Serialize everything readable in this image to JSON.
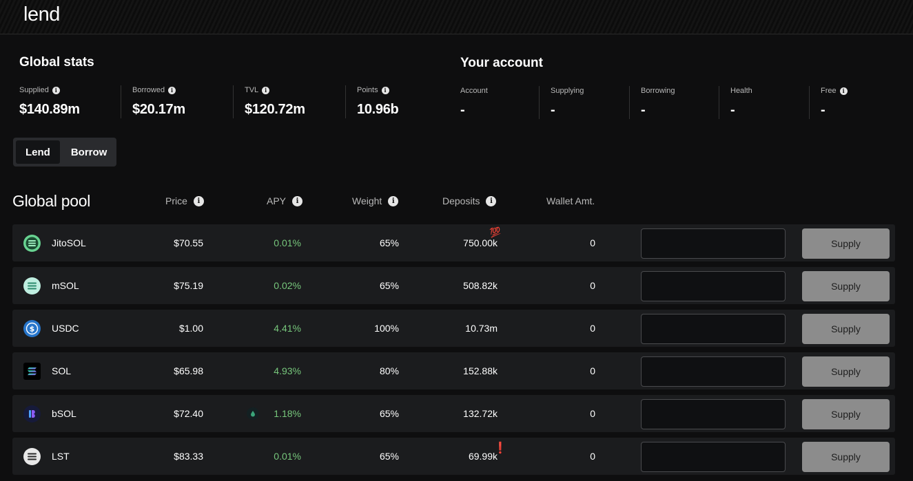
{
  "header": {
    "logo": "lend"
  },
  "global_stats": {
    "title": "Global stats",
    "items": [
      {
        "label": "Supplied",
        "value": "$140.89m"
      },
      {
        "label": "Borrowed",
        "value": "$20.17m"
      },
      {
        "label": "TVL",
        "value": "$120.72m"
      },
      {
        "label": "Points",
        "value": "10.96b"
      }
    ]
  },
  "account": {
    "title": "Your account",
    "items": [
      {
        "label": "Account",
        "value": "-"
      },
      {
        "label": "Supplying",
        "value": "-"
      },
      {
        "label": "Borrowing",
        "value": "-"
      },
      {
        "label": "Health",
        "value": "-"
      },
      {
        "label": "Free",
        "value": "-"
      }
    ]
  },
  "toggle": {
    "lend": "Lend",
    "borrow": "Borrow",
    "active": "Lend"
  },
  "pool": {
    "title": "Global pool",
    "columns": {
      "price": "Price",
      "apy": "APY",
      "weight": "Weight",
      "deposits": "Deposits",
      "wallet": "Wallet Amt."
    },
    "rows": [
      {
        "token": "JitoSOL",
        "icon": "jitosol-icon",
        "price": "$70.55",
        "apy": "0.01%",
        "weight": "65%",
        "deposits": "750.00k",
        "badge": "💯",
        "wallet": "0",
        "input": "",
        "action": "Supply"
      },
      {
        "token": "mSOL",
        "icon": "msol-icon",
        "price": "$75.19",
        "apy": "0.02%",
        "weight": "65%",
        "deposits": "508.82k",
        "wallet": "0",
        "input": "",
        "action": "Supply"
      },
      {
        "token": "USDC",
        "icon": "usdc-icon",
        "price": "$1.00",
        "apy": "4.41%",
        "weight": "100%",
        "deposits": "10.73m",
        "wallet": "0",
        "input": "",
        "action": "Supply"
      },
      {
        "token": "SOL",
        "icon": "sol-icon",
        "price": "$65.98",
        "apy": "4.93%",
        "weight": "80%",
        "deposits": "152.88k",
        "wallet": "0",
        "input": "",
        "action": "Supply"
      },
      {
        "token": "bSOL",
        "icon": "bsol-icon",
        "price": "$72.40",
        "apy": "1.18%",
        "weight": "65%",
        "deposits": "132.72k",
        "wallet": "0",
        "input": "",
        "action": "Supply"
      },
      {
        "token": "LST",
        "icon": "lst-icon",
        "price": "$83.33",
        "apy": "0.01%",
        "weight": "65%",
        "deposits": "69.99k",
        "badge": "❗",
        "wallet": "0",
        "input": "",
        "action": "Supply"
      }
    ]
  },
  "colors": {
    "apy": "#77c77c",
    "row_bg": "#1b1c1e",
    "page_bg": "#0e0e0f",
    "supply_btn": "#8c8c8c"
  }
}
